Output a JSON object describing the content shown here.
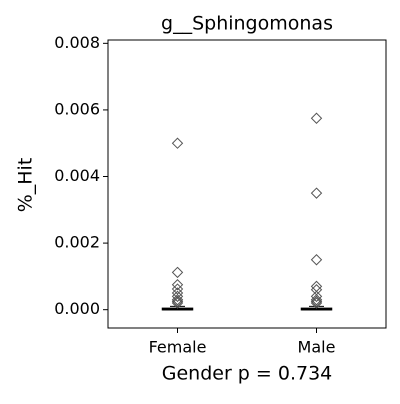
{
  "chart_data": {
    "type": "box",
    "title": "g__Sphingomonas",
    "x_label": "Gender p = 0.734",
    "y_label": "%_Hit",
    "categories": [
      "Female",
      "Male"
    ],
    "boxes": [
      {
        "min": 0,
        "q1": 0,
        "median": 1e-05,
        "q3": 4e-05,
        "max": 0.0001,
        "outliers": [
          0.005,
          0.00112,
          0.00075,
          0.00062,
          0.0005,
          0.0004,
          0.0003,
          0.00025,
          0.0002
        ]
      },
      {
        "min": 0,
        "q1": 0,
        "median": 1e-05,
        "q3": 4e-05,
        "max": 0.0001,
        "outliers": [
          0.00575,
          0.0035,
          0.0015,
          0.0007,
          0.0006,
          0.0004,
          0.0003,
          0.00025,
          0.0002
        ]
      }
    ],
    "color": "#000000",
    "outlier_color": "#555555",
    "ylim": [
      -0.00055,
      0.0081
    ],
    "yticks": [
      {
        "value": 0,
        "label": "0.000"
      },
      {
        "value": 0.002,
        "label": "0.002"
      },
      {
        "value": 0.004,
        "label": "0.004"
      },
      {
        "value": 0.006,
        "label": "0.006"
      },
      {
        "value": 0.008,
        "label": "0.008"
      }
    ]
  }
}
